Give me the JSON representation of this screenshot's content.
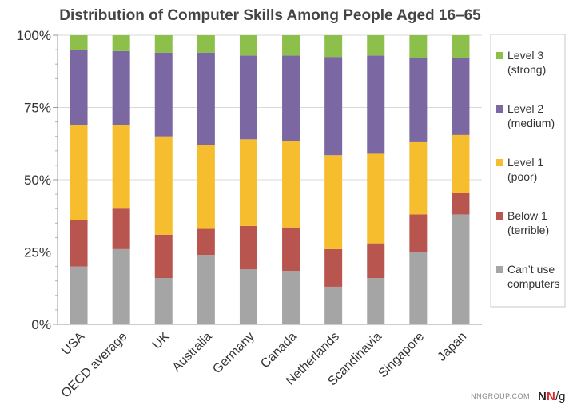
{
  "chart_data": {
    "type": "bar",
    "stacked": true,
    "title": "Distribution of Computer Skills Among People Aged 16–65",
    "xlabel": "",
    "ylabel": "",
    "ylim": [
      0,
      100
    ],
    "yticks": [
      "0%",
      "25%",
      "50%",
      "75%",
      "100%"
    ],
    "categories": [
      "USA",
      "OECD average",
      "UK",
      "Australia",
      "Germany",
      "Canada",
      "Netherlands",
      "Scandinavia",
      "Singapore",
      "Japan"
    ],
    "series": [
      {
        "name": "Can’t use computers",
        "color": "#a5a5a5",
        "values": [
          20,
          26,
          16,
          24,
          19,
          18.5,
          13,
          16,
          25,
          38
        ]
      },
      {
        "name": "Below 1 (terrible)",
        "color": "#b9554f",
        "values": [
          16,
          14,
          15,
          9,
          15,
          15,
          13,
          12,
          13,
          7.5
        ]
      },
      {
        "name": "Level 1 (poor)",
        "color": "#f6bd2f",
        "values": [
          33,
          29,
          34,
          29,
          30,
          30,
          32.5,
          31,
          25,
          20
        ]
      },
      {
        "name": "Level 2 (medium)",
        "color": "#7b68a3",
        "values": [
          26,
          25.5,
          29,
          32,
          29,
          29.5,
          34,
          34,
          29,
          26.5
        ]
      },
      {
        "name": "Level 3 (strong)",
        "color": "#8cc04a",
        "values": [
          5,
          5.5,
          6,
          6,
          7,
          7,
          7.5,
          7,
          8,
          8
        ]
      }
    ],
    "legend": {
      "position": "right",
      "entries": [
        {
          "line1": "Level 3",
          "line2": "(strong)",
          "color": "#8cc04a"
        },
        {
          "line1": "Level 2",
          "line2": "(medium)",
          "color": "#7b68a3"
        },
        {
          "line1": "Level 1",
          "line2": "(poor)",
          "color": "#f6bd2f"
        },
        {
          "line1": "Below 1",
          "line2": "(terrible)",
          "color": "#b9554f"
        },
        {
          "line1": "Can’t use",
          "line2": "computers",
          "color": "#a5a5a5"
        }
      ]
    }
  },
  "footer": {
    "site": "NNGROUP.COM",
    "logo_n1": "N",
    "logo_n2": "N",
    "logo_g": "/g"
  }
}
